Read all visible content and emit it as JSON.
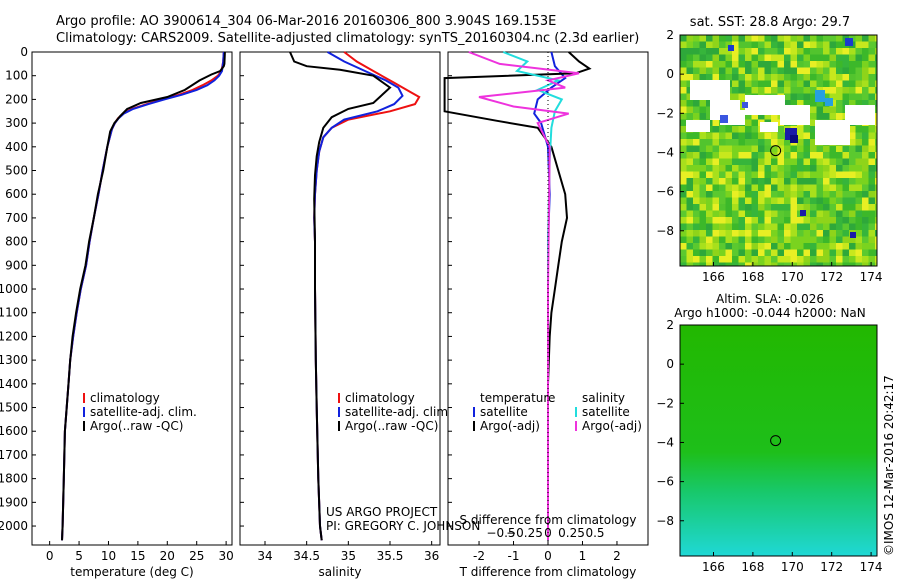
{
  "header": {
    "title_line1": "Argo profile: AO 3900614_304 06-Mar-2016 20160306_800 3.904S 169.153E",
    "title_line2": "Climatology: CARS2009. Satellite-adjusted climatology: synTS_20160304.nc (2.3d earlier)"
  },
  "credits": {
    "project": "US ARGO PROJECT",
    "pi": "PI: GREGORY C. JOHNSON",
    "imos": "©IMOS 12-Mar-2016 20:42:17"
  },
  "colors": {
    "climatology": "#ee1111",
    "satellite": "#1122dd",
    "argo": "#000000",
    "sal_satellite": "#22dddd",
    "sal_argo": "#ee33dd"
  },
  "chart_data": [
    {
      "type": "line",
      "id": "temperature",
      "xlabel": "temperature (deg C)",
      "ylabel": "",
      "xlim": [
        -3,
        31
      ],
      "ylim": [
        2080,
        0
      ],
      "xticks": [
        0,
        5,
        10,
        15,
        20,
        25,
        30
      ],
      "yticks": [
        0,
        100,
        200,
        300,
        400,
        500,
        600,
        700,
        800,
        900,
        1000,
        1100,
        1200,
        1300,
        1400,
        1500,
        1600,
        1700,
        1800,
        1900,
        2000
      ],
      "legend": [
        "climatology",
        "satellite-adj. clim.",
        "Argo(..raw -QC)"
      ],
      "legend_placement": "lower-center",
      "series": [
        {
          "name": "climatology",
          "color": "#ee1111",
          "x": [
            29.6,
            29.5,
            29.2,
            28.6,
            27.5,
            26.0,
            24.3,
            22.0,
            19.2,
            16.5,
            14.0,
            12.5,
            11.6,
            11.1,
            10.6,
            9.8,
            9.0,
            8.3,
            7.5,
            6.8,
            6.2,
            5.3,
            4.6,
            4.0,
            3.5,
            3.2,
            2.9,
            2.6,
            2.4,
            2.2,
            2.1
          ],
          "y": [
            0,
            40,
            80,
            100,
            120,
            140,
            160,
            180,
            200,
            220,
            240,
            260,
            280,
            300,
            325,
            400,
            500,
            600,
            700,
            800,
            900,
            1000,
            1100,
            1200,
            1300,
            1400,
            1500,
            1600,
            1800,
            2000,
            2060
          ]
        },
        {
          "name": "satellite",
          "color": "#1122dd",
          "x": [
            29.6,
            29.5,
            29.3,
            28.8,
            28.0,
            26.8,
            25.0,
            22.5,
            19.5,
            16.8,
            14.2,
            12.6,
            11.7,
            11.1,
            10.6,
            9.8,
            9.0,
            8.3,
            7.5,
            6.8,
            6.2,
            5.3,
            4.6,
            4.0,
            3.5,
            3.2,
            2.9,
            2.6,
            2.4,
            2.2,
            2.1
          ],
          "y": [
            0,
            40,
            80,
            100,
            120,
            140,
            160,
            180,
            200,
            220,
            240,
            260,
            280,
            300,
            325,
            400,
            500,
            600,
            700,
            800,
            900,
            1000,
            1100,
            1200,
            1300,
            1400,
            1500,
            1600,
            1800,
            2000,
            2060
          ]
        },
        {
          "name": "Argo",
          "color": "#000000",
          "x": [
            29.8,
            29.7,
            29.6,
            29.0,
            27.5,
            25.5,
            23.0,
            20.0,
            15.5,
            13.2,
            12.0,
            11.0,
            10.3,
            9.8,
            9.1,
            8.2,
            7.5,
            6.7,
            6.1,
            5.2,
            4.5,
            3.9,
            3.5,
            3.2,
            2.9,
            2.6,
            2.4,
            2.2,
            2.1
          ],
          "y": [
            0,
            50,
            60,
            80,
            95,
            120,
            160,
            190,
            215,
            240,
            270,
            300,
            335,
            400,
            500,
            600,
            700,
            800,
            900,
            1000,
            1100,
            1200,
            1300,
            1400,
            1500,
            1600,
            1800,
            2000,
            2060
          ]
        }
      ]
    },
    {
      "type": "line",
      "id": "salinity",
      "xlabel": "salinity",
      "xlim": [
        33.7,
        36.1
      ],
      "ylim": [
        2080,
        0
      ],
      "xticks": [
        34,
        34.5,
        35,
        35.5,
        36
      ],
      "legend": [
        "climatology",
        "satellite-adj. clim.",
        "Argo(..raw -QC)"
      ],
      "legend_placement": "lower-center",
      "series": [
        {
          "name": "climatology",
          "color": "#ee1111",
          "x": [
            34.95,
            35.1,
            35.3,
            35.55,
            35.75,
            35.85,
            35.8,
            35.5,
            35.0,
            34.8,
            34.7,
            34.65,
            34.62,
            34.6,
            34.59,
            34.6,
            34.6,
            34.61,
            34.62,
            34.64,
            34.66,
            34.68
          ],
          "y": [
            0,
            40,
            80,
            130,
            170,
            190,
            220,
            250,
            285,
            320,
            360,
            420,
            500,
            600,
            700,
            800,
            1000,
            1300,
            1500,
            1800,
            2000,
            2060
          ]
        },
        {
          "name": "satellite",
          "color": "#1122dd",
          "x": [
            34.75,
            34.95,
            35.2,
            35.45,
            35.6,
            35.65,
            35.55,
            35.35,
            34.95,
            34.8,
            34.7,
            34.65,
            34.62,
            34.6,
            34.59,
            34.6,
            34.6,
            34.61,
            34.62,
            34.64,
            34.66,
            34.68
          ],
          "y": [
            0,
            40,
            80,
            120,
            150,
            185,
            220,
            250,
            285,
            320,
            360,
            420,
            500,
            600,
            700,
            800,
            1000,
            1300,
            1500,
            1800,
            2000,
            2060
          ]
        },
        {
          "name": "Argo",
          "color": "#000000",
          "x": [
            34.3,
            34.35,
            34.5,
            34.9,
            35.3,
            35.5,
            35.3,
            35.0,
            34.8,
            34.7,
            34.65,
            34.62,
            34.6,
            34.59,
            34.6,
            34.6,
            34.61,
            34.62,
            34.64,
            34.66,
            34.68
          ],
          "y": [
            0,
            40,
            60,
            75,
            100,
            150,
            215,
            240,
            275,
            320,
            380,
            440,
            520,
            620,
            800,
            1000,
            1300,
            1500,
            1800,
            2000,
            2060
          ]
        }
      ]
    },
    {
      "type": "line",
      "id": "difference",
      "xlabel": "T difference from climatology",
      "xlabel_top": "S difference from climatology",
      "xlim_T": [
        -2.9,
        2.9
      ],
      "xticks_T": [
        -2,
        -1,
        0,
        1,
        2
      ],
      "xticks_S": [
        -0.5,
        -0.25,
        0,
        0.25,
        0.5
      ],
      "ylim": [
        2080,
        0
      ],
      "legend_temperature_title": "temperature",
      "legend_salinity_title": "salinity",
      "legend_temperature": [
        "satellite",
        "Argo(-adj)"
      ],
      "legend_salinity": [
        "satellite",
        "Argo(-adj)"
      ],
      "series": [
        {
          "name": "T satellite",
          "color": "#1122dd",
          "x": [
            0.1,
            0.2,
            0.5,
            0.1,
            -0.3,
            -0.4,
            -0.2,
            0.0,
            0.05,
            0.0,
            0.0,
            0.0,
            0.0,
            0.0
          ],
          "y": [
            0,
            60,
            110,
            150,
            200,
            260,
            300,
            400,
            600,
            800,
            1000,
            1400,
            1800,
            2060
          ]
        },
        {
          "name": "T Argo",
          "color": "#000000",
          "x": [
            0.6,
            0.9,
            1.2,
            0.8,
            -3.0,
            -3.0,
            -1.5,
            -0.3,
            0.1,
            0.3,
            0.5,
            0.55,
            0.4,
            0.3,
            0.2,
            0.1,
            0.05,
            0.0,
            0.0,
            0.0
          ],
          "y": [
            0,
            40,
            70,
            90,
            110,
            250,
            290,
            320,
            400,
            500,
            600,
            700,
            800,
            900,
            1000,
            1100,
            1200,
            1400,
            1800,
            2060
          ]
        },
        {
          "name": "S satellite",
          "color": "#22dddd",
          "x": [
            -1.3,
            -0.6,
            -0.9,
            0.3,
            -0.3,
            0.4,
            0.2,
            0.1,
            0.05,
            0.0,
            0.0,
            0.0
          ],
          "y": [
            0,
            40,
            80,
            120,
            160,
            200,
            250,
            320,
            450,
            800,
            1400,
            2060
          ]
        },
        {
          "name": "S Argo",
          "color": "#ee33dd",
          "x": [
            -2.3,
            -1.4,
            0.9,
            0.0,
            0.5,
            -2.0,
            -1.0,
            0.6,
            -0.3,
            0.05,
            0.0,
            0.0
          ],
          "y": [
            0,
            50,
            90,
            120,
            150,
            190,
            230,
            260,
            300,
            400,
            1000,
            2060
          ]
        }
      ]
    }
  ],
  "maps": [
    {
      "id": "sst",
      "title": "sat. SST: 28.8 Argo: 29.7",
      "xticks": [
        166,
        168,
        170,
        172,
        174
      ],
      "yticks": [
        2,
        0,
        -2,
        -4,
        -6,
        -8
      ],
      "xlim": [
        164.3,
        174.3
      ],
      "ylim": [
        -9.8,
        2
      ],
      "marker": {
        "lon": 169.153,
        "lat": -3.904
      }
    },
    {
      "id": "sla",
      "title": "Altim. SLA: -0.026",
      "subtitle": "Argo h1000: -0.044 h2000: NaN",
      "xticks": [
        166,
        168,
        170,
        172,
        174
      ],
      "yticks": [
        2,
        0,
        -2,
        -4,
        -6,
        -8
      ],
      "xlim": [
        164.3,
        174.3
      ],
      "ylim": [
        -9.8,
        2
      ],
      "marker": {
        "lon": 169.153,
        "lat": -3.904
      }
    }
  ]
}
